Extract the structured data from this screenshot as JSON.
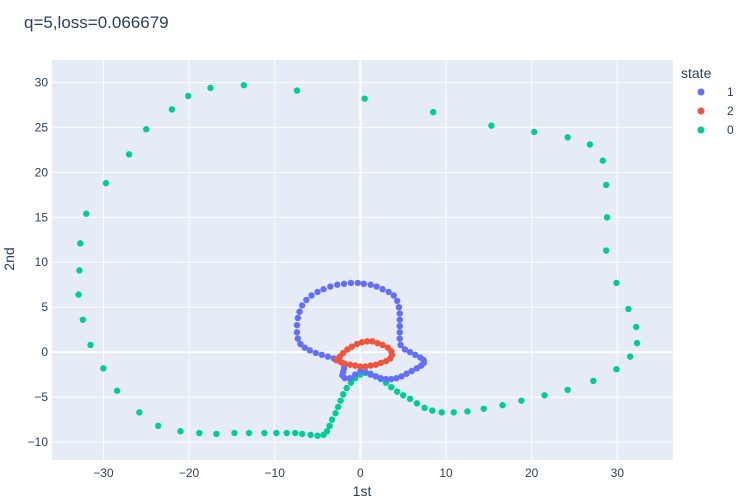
{
  "chart_data": {
    "type": "scatter",
    "title": "q=5,loss=0.066679",
    "xlabel": "1st",
    "ylabel": "2nd",
    "xlim": [
      -36,
      36.5
    ],
    "ylim": [
      -12,
      32.5
    ],
    "xticks": [
      -30,
      -20,
      -10,
      0,
      10,
      20,
      30
    ],
    "yticks": [
      -10,
      -5,
      0,
      5,
      10,
      15,
      20,
      25,
      30
    ],
    "grid": true,
    "legend": {
      "title": "state",
      "placement": "right"
    },
    "series": [
      {
        "name": "1",
        "color": "#636efa",
        "points": [
          [
            -1.9,
            -1.8
          ],
          [
            -2.0,
            -2.2
          ],
          [
            -2.1,
            -2.6
          ],
          [
            -1.8,
            -2.9
          ],
          [
            -1.2,
            -2.9
          ],
          [
            -0.6,
            -2.5
          ],
          [
            0.0,
            -2.1
          ],
          [
            0.6,
            -2.2
          ],
          [
            1.2,
            -2.5
          ],
          [
            1.8,
            -2.7
          ],
          [
            2.4,
            -2.9
          ],
          [
            3.0,
            -3.0
          ],
          [
            3.6,
            -3.0
          ],
          [
            4.2,
            -2.9
          ],
          [
            4.8,
            -2.7
          ],
          [
            5.4,
            -2.4
          ],
          [
            6.0,
            -2.1
          ],
          [
            6.6,
            -1.8
          ],
          [
            7.1,
            -1.5
          ],
          [
            7.4,
            -1.2
          ],
          [
            7.4,
            -0.9
          ],
          [
            7.0,
            -0.6
          ],
          [
            6.4,
            -0.3
          ],
          [
            5.8,
            0.0
          ],
          [
            5.2,
            0.3
          ],
          [
            4.7,
            0.8
          ],
          [
            4.6,
            1.5
          ],
          [
            4.6,
            2.2
          ],
          [
            4.6,
            2.9
          ],
          [
            4.6,
            3.6
          ],
          [
            4.6,
            4.3
          ],
          [
            4.5,
            5.0
          ],
          [
            4.3,
            5.7
          ],
          [
            3.9,
            6.3
          ],
          [
            3.3,
            6.7
          ],
          [
            2.6,
            7.0
          ],
          [
            1.9,
            7.3
          ],
          [
            1.2,
            7.5
          ],
          [
            0.4,
            7.6
          ],
          [
            -0.3,
            7.7
          ],
          [
            -1.1,
            7.7
          ],
          [
            -1.9,
            7.6
          ],
          [
            -2.7,
            7.5
          ],
          [
            -3.5,
            7.3
          ],
          [
            -4.3,
            7.0
          ],
          [
            -5.0,
            6.7
          ],
          [
            -5.7,
            6.3
          ],
          [
            -6.3,
            5.8
          ],
          [
            -6.8,
            5.2
          ],
          [
            -7.1,
            4.5
          ],
          [
            -7.3,
            3.8
          ],
          [
            -7.4,
            3.0
          ],
          [
            -7.4,
            2.2
          ],
          [
            -7.3,
            1.5
          ],
          [
            -7.0,
            0.9
          ],
          [
            -6.5,
            0.5
          ],
          [
            -5.9,
            0.2
          ],
          [
            -5.2,
            -0.1
          ],
          [
            -4.5,
            -0.3
          ],
          [
            -3.8,
            -0.5
          ],
          [
            -3.1,
            -0.7
          ],
          [
            -2.5,
            -0.9
          ],
          [
            -2.1,
            -1.2
          ]
        ]
      },
      {
        "name": "2",
        "color": "#ef553b",
        "points": [
          [
            -2.8,
            -0.9
          ],
          [
            -2.4,
            -0.5
          ],
          [
            -2.0,
            -0.1
          ],
          [
            -1.5,
            0.3
          ],
          [
            -1.0,
            0.6
          ],
          [
            -0.4,
            0.9
          ],
          [
            0.2,
            1.1
          ],
          [
            0.8,
            1.2
          ],
          [
            1.4,
            1.2
          ],
          [
            2.0,
            1.0
          ],
          [
            2.6,
            0.8
          ],
          [
            3.2,
            0.5
          ],
          [
            3.6,
            0.1
          ],
          [
            3.7,
            -0.3
          ],
          [
            3.5,
            -0.7
          ],
          [
            3.0,
            -1.0
          ],
          [
            2.4,
            -1.2
          ],
          [
            1.8,
            -1.4
          ],
          [
            1.2,
            -1.5
          ],
          [
            0.6,
            -1.6
          ],
          [
            0.0,
            -1.6
          ],
          [
            -0.6,
            -1.5
          ],
          [
            -1.2,
            -1.4
          ],
          [
            -1.8,
            -1.3
          ],
          [
            -2.3,
            -1.1
          ]
        ]
      },
      {
        "name": "0",
        "color": "#00cc96",
        "points": [
          [
            -13.6,
            29.7
          ],
          [
            -7.4,
            29.1
          ],
          [
            0.5,
            28.2
          ],
          [
            8.5,
            26.7
          ],
          [
            15.3,
            25.2
          ],
          [
            20.3,
            24.5
          ],
          [
            24.2,
            23.9
          ],
          [
            26.8,
            23.1
          ],
          [
            28.3,
            21.3
          ],
          [
            28.7,
            18.6
          ],
          [
            28.8,
            15.0
          ],
          [
            28.7,
            11.3
          ],
          [
            29.9,
            7.7
          ],
          [
            31.3,
            4.8
          ],
          [
            32.2,
            2.8
          ],
          [
            32.3,
            1.0
          ],
          [
            31.5,
            -0.5
          ],
          [
            29.9,
            -1.9
          ],
          [
            27.2,
            -3.2
          ],
          [
            24.2,
            -4.2
          ],
          [
            21.5,
            -4.8
          ],
          [
            18.8,
            -5.4
          ],
          [
            16.6,
            -5.9
          ],
          [
            14.4,
            -6.3
          ],
          [
            12.5,
            -6.6
          ],
          [
            10.9,
            -6.7
          ],
          [
            9.5,
            -6.7
          ],
          [
            8.4,
            -6.5
          ],
          [
            7.5,
            -6.2
          ],
          [
            6.6,
            -5.7
          ],
          [
            5.8,
            -5.2
          ],
          [
            5.0,
            -4.8
          ],
          [
            4.3,
            -4.4
          ],
          [
            3.6,
            -3.9
          ],
          [
            3.0,
            -3.4
          ],
          [
            2.4,
            -3.0
          ],
          [
            1.8,
            -2.7
          ],
          [
            1.2,
            -2.4
          ],
          [
            0.6,
            -2.3
          ],
          [
            0.0,
            -2.5
          ],
          [
            -0.6,
            -2.9
          ],
          [
            -1.1,
            -3.4
          ],
          [
            -1.6,
            -4.0
          ],
          [
            -2.0,
            -4.7
          ],
          [
            -2.3,
            -5.4
          ],
          [
            -2.6,
            -6.1
          ],
          [
            -2.9,
            -6.8
          ],
          [
            -3.3,
            -7.5
          ],
          [
            -3.6,
            -8.2
          ],
          [
            -3.9,
            -8.8
          ],
          [
            -4.3,
            -9.2
          ],
          [
            -5.0,
            -9.3
          ],
          [
            -5.8,
            -9.2
          ],
          [
            -6.8,
            -9.1
          ],
          [
            -7.6,
            -9.0
          ],
          [
            -8.6,
            -9.0
          ],
          [
            -9.8,
            -9.0
          ],
          [
            -11.2,
            -9.0
          ],
          [
            -13.0,
            -9.0
          ],
          [
            -14.7,
            -9.0
          ],
          [
            -16.8,
            -9.1
          ],
          [
            -18.8,
            -9.0
          ],
          [
            -21.0,
            -8.8
          ],
          [
            -23.6,
            -8.2
          ],
          [
            -25.8,
            -6.7
          ],
          [
            -28.4,
            -4.3
          ],
          [
            -30.0,
            -1.8
          ],
          [
            -31.5,
            0.8
          ],
          [
            -32.4,
            3.6
          ],
          [
            -32.9,
            6.4
          ],
          [
            -32.8,
            9.1
          ],
          [
            -32.7,
            12.1
          ],
          [
            -32.0,
            15.4
          ],
          [
            -29.7,
            18.8
          ],
          [
            -27.0,
            22.0
          ],
          [
            -25.0,
            24.8
          ],
          [
            -22.0,
            27.0
          ],
          [
            -20.1,
            28.5
          ],
          [
            -17.5,
            29.4
          ]
        ]
      }
    ]
  }
}
